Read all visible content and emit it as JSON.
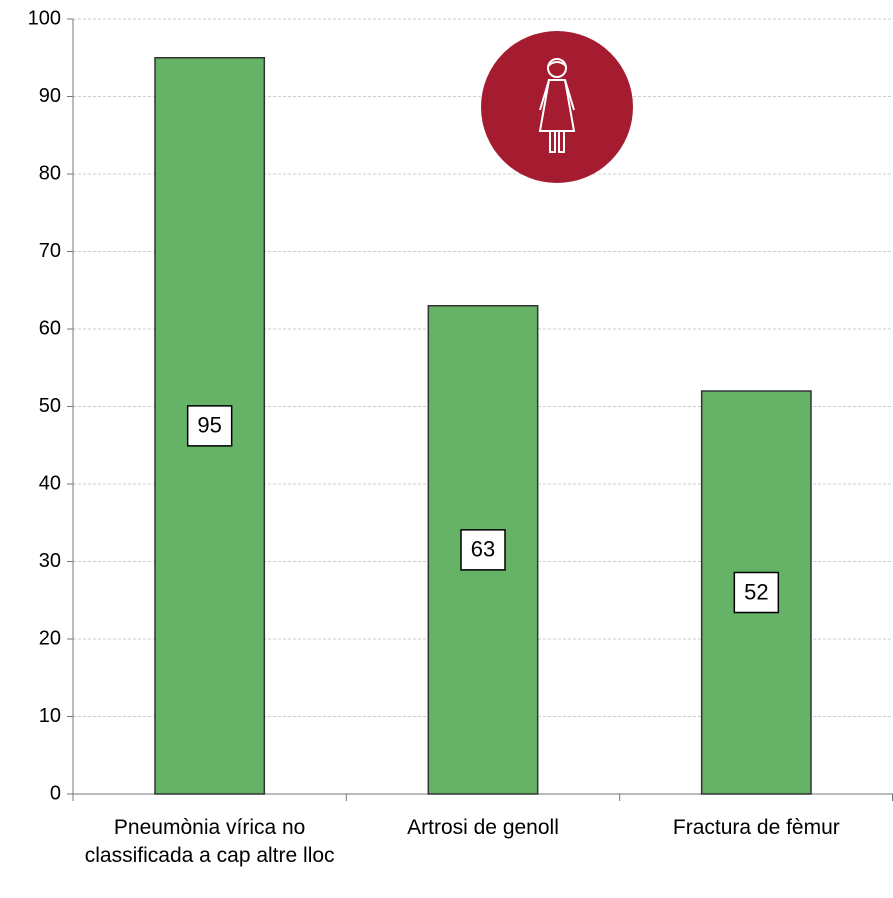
{
  "chart_data": {
    "type": "bar",
    "categories": [
      "Pneumònia vírica no classificada a cap altre lloc",
      "Artrosi de genoll",
      "Fractura de fèmur"
    ],
    "values": [
      95,
      63,
      52
    ],
    "color": "#66b266",
    "ylim": [
      0,
      100
    ],
    "yticks": [
      0,
      10,
      20,
      30,
      40,
      50,
      60,
      70,
      80,
      90,
      100
    ],
    "grid": true
  }
}
